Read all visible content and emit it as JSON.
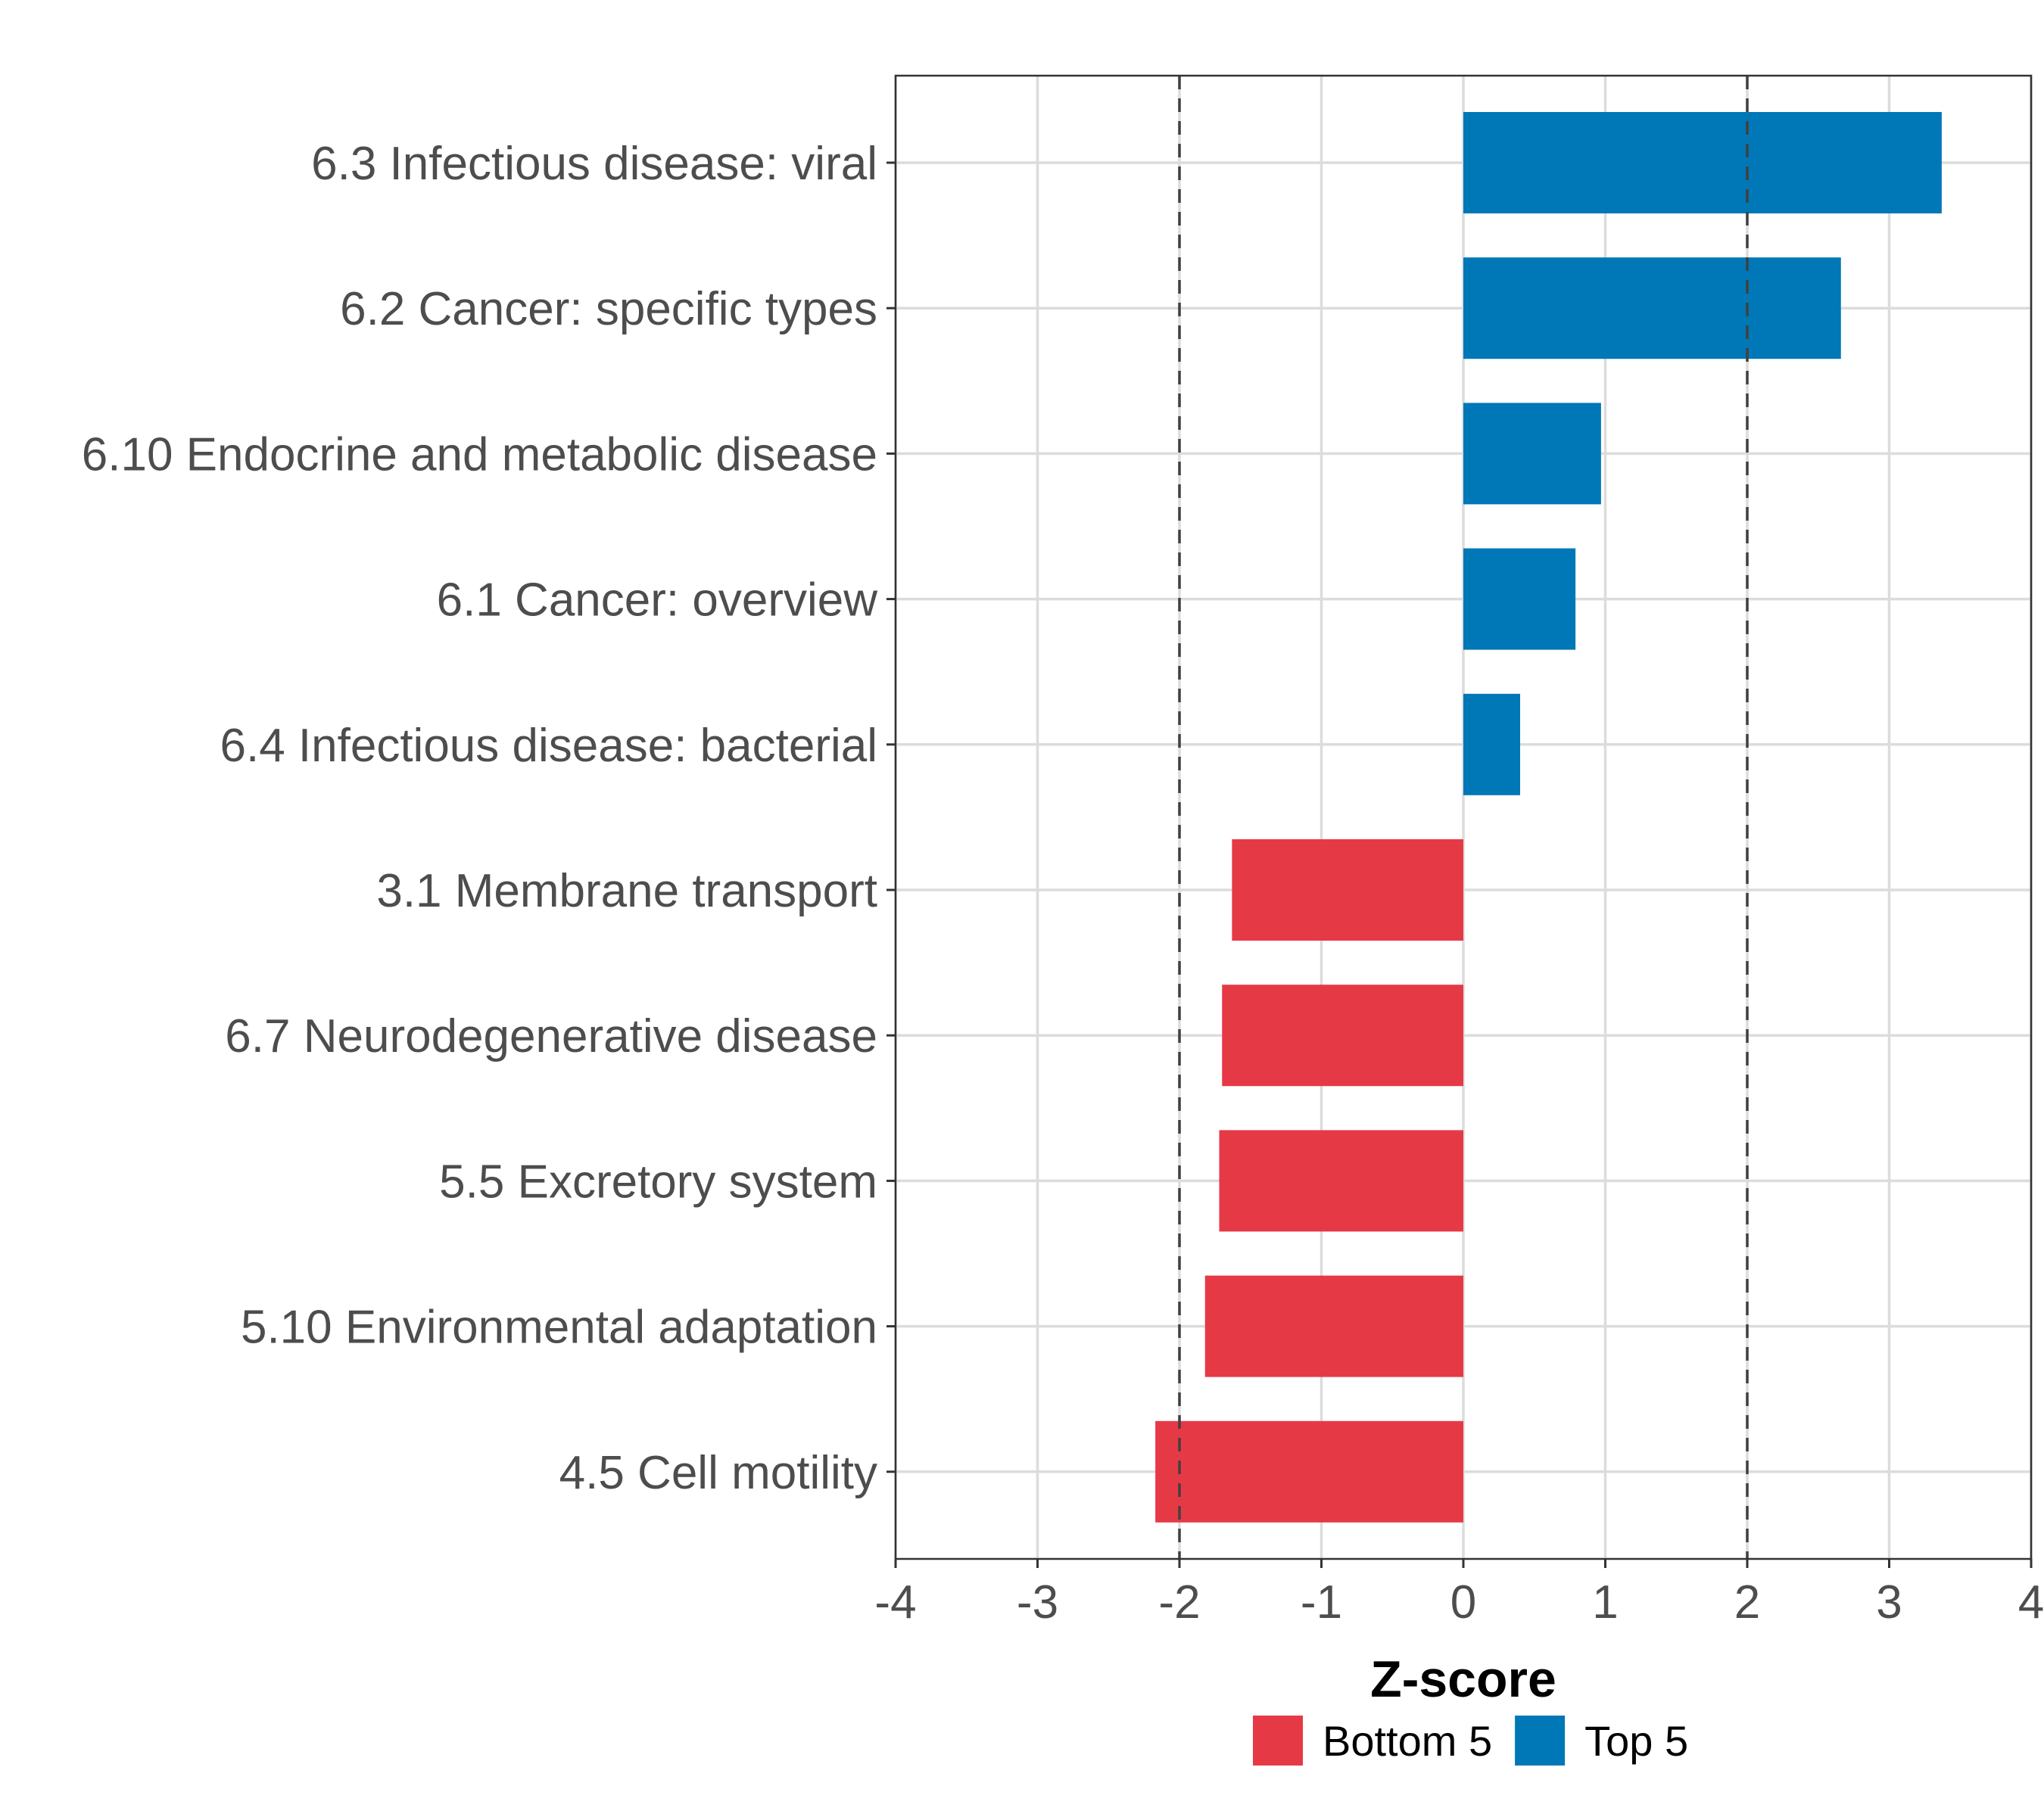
{
  "chart_data": {
    "type": "bar",
    "orientation": "horizontal",
    "title": "",
    "xlabel": "Z-score",
    "ylabel": "",
    "xlim": [
      -4,
      4
    ],
    "xticks": [
      -4,
      -3,
      -2,
      -1,
      0,
      1,
      2,
      3,
      4
    ],
    "xtick_labels": [
      "-4",
      "-3",
      "-2",
      "-1",
      "0",
      "1",
      "2",
      "3",
      "4"
    ],
    "grid": true,
    "reference_lines": [
      -2,
      2
    ],
    "categories": [
      "6.3 Infectious disease: viral",
      "6.2 Cancer: specific types",
      "6.10 Endocrine and metabolic disease",
      "6.1 Cancer: overview",
      "6.4 Infectious disease: bacterial",
      "3.1 Membrane transport",
      "6.7 Neurodegenerative disease",
      "5.5 Excretory system",
      "5.10 Environmental adaptation",
      "4.5 Cell motility"
    ],
    "values": [
      3.37,
      2.66,
      0.97,
      0.79,
      0.4,
      -1.63,
      -1.7,
      -1.72,
      -1.82,
      -2.17
    ],
    "groups": [
      "Top 5",
      "Top 5",
      "Top 5",
      "Top 5",
      "Top 5",
      "Bottom 5",
      "Bottom 5",
      "Bottom 5",
      "Bottom 5",
      "Bottom 5"
    ],
    "legend": {
      "position": "bottom",
      "entries": [
        {
          "label": "Bottom 5",
          "color": "#e63946"
        },
        {
          "label": "Top 5",
          "color": "#0077b6"
        }
      ]
    }
  }
}
